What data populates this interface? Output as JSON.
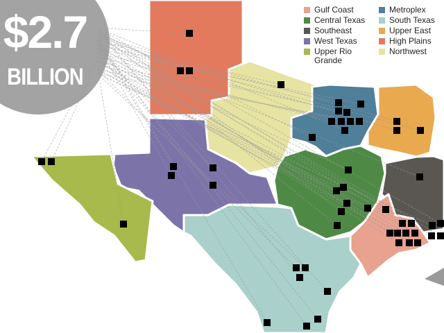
{
  "headline": {
    "amount": "$2.7",
    "unit": "BILLION"
  },
  "legend": [
    {
      "name": "Gulf Coast",
      "color": "#e9a28f"
    },
    {
      "name": "Central Texas",
      "color": "#4e8a45"
    },
    {
      "name": "Southeast",
      "color": "#5a5752"
    },
    {
      "name": "West Texas",
      "color": "#7c74a9"
    },
    {
      "name": "Upper Rio Grande",
      "color": "#a7ba4b"
    },
    {
      "name": "Metroplex",
      "color": "#4f7f99"
    },
    {
      "name": "South Texas",
      "color": "#a9d0ca"
    },
    {
      "name": "Upper East",
      "color": "#e9a94f"
    },
    {
      "name": "High Plains",
      "color": "#e37a5d"
    },
    {
      "name": "Northwest",
      "color": "#e7e3a2"
    }
  ]
}
